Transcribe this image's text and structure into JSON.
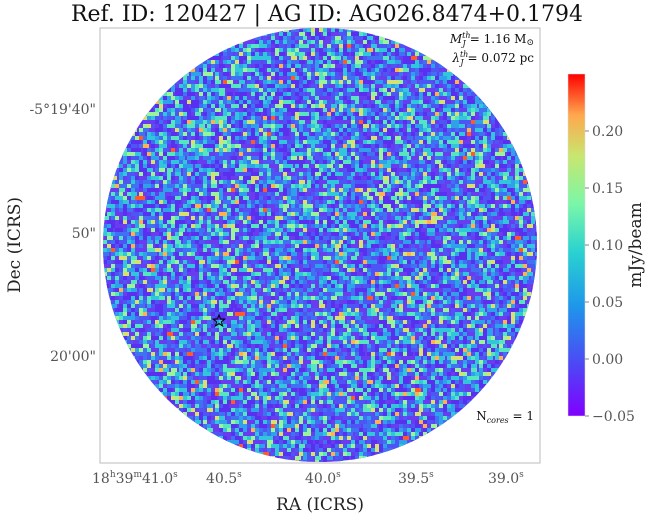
{
  "title": "Ref. ID: 120427 | AG ID: AG026.8474+0.1794",
  "chart_data": {
    "type": "heatmap",
    "title": "Ref. ID: 120427 | AG ID: AG026.8474+0.1794",
    "xlabel": "RA (ICRS)",
    "ylabel": "Dec (ICRS)",
    "x_ticks": [
      {
        "h": "18",
        "m": "39",
        "s": "41.0",
        "main": "18",
        "sup1": "h",
        "mid": "39",
        "sup2": "m",
        "tail": "41.0",
        "sup3": "s"
      },
      {
        "tail": "40.5",
        "sup3": "s"
      },
      {
        "tail": "40.0",
        "sup3": "s"
      },
      {
        "tail": "39.5",
        "sup3": "s"
      },
      {
        "tail": "39.0",
        "sup3": "s"
      }
    ],
    "y_ticks": [
      "-5°19'40\"",
      "50\"",
      "20'00\""
    ],
    "colorbar": {
      "label": "mJy/beam",
      "min": -0.05,
      "max": 0.25,
      "ticks": [
        "0.20",
        "0.15",
        "0.10",
        "0.05",
        "0.00",
        "−0.05"
      ],
      "tick_values": [
        0.2,
        0.15,
        0.1,
        0.05,
        0.0,
        -0.05
      ],
      "colormap": "rainbow"
    },
    "annotations": {
      "mass_label": "M",
      "mass_sup": "th",
      "mass_sub": "J",
      "mass_value": "= 1.16 M",
      "sun_symbol": "⊙",
      "jeans_label": "λ",
      "jeans_sup": "th",
      "jeans_sub": "J",
      "jeans_value": "= 0.072 pc",
      "cores_label": "N",
      "cores_sub": "cores",
      "cores_value": " = 1"
    },
    "cores": [
      {
        "marker": "star",
        "ra_s": 40.45,
        "dec": "-5°19'56\""
      }
    ],
    "grid": false
  }
}
